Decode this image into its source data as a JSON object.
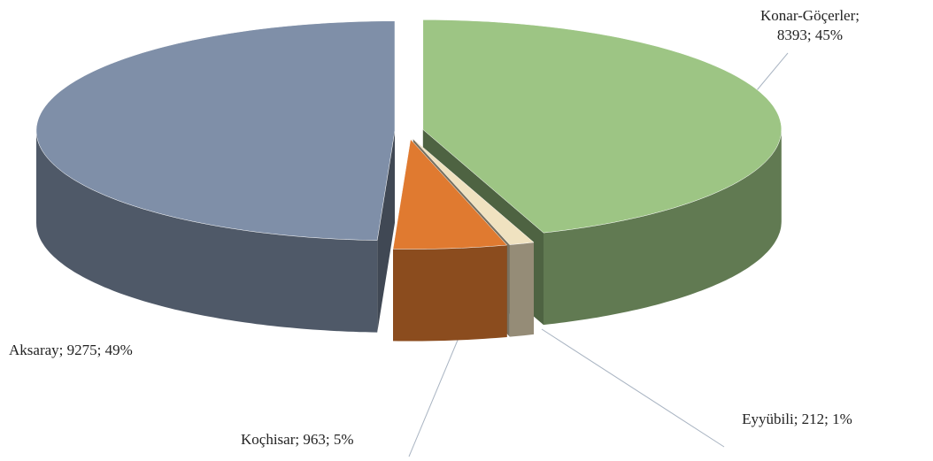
{
  "chart_data": {
    "type": "pie",
    "3d": true,
    "exploded": true,
    "values": [
      8393,
      212,
      963,
      9275
    ],
    "value_labels": [
      "Konar-Göçerler; 8393; 45%",
      "Eyyübili; 212; 1%",
      "Koçhisar; 963; 5%",
      "Aksaray; 9275; 49%"
    ],
    "colors": [
      "#9dc584",
      "#f0e2c0",
      "#e07a30",
      "#7f8fa8"
    ]
  }
}
